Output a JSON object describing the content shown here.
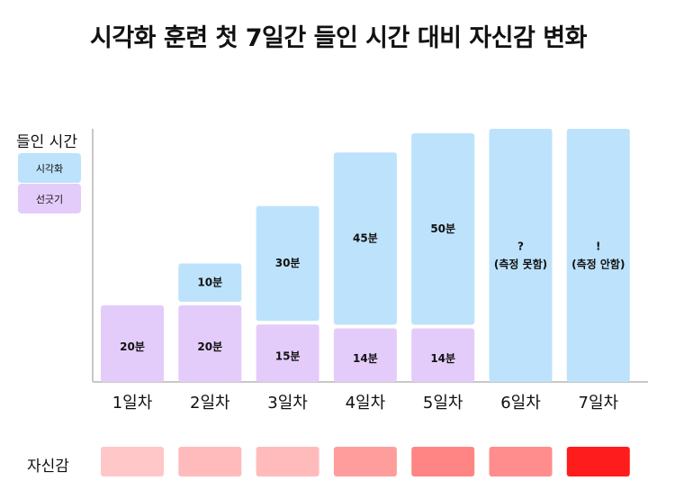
{
  "chart_data": {
    "type": "bar",
    "title": "시각화 훈련 첫 7일간 들인 시간 대비 자신감 변화",
    "legend_title": "들인 시간",
    "categories": [
      "1일차",
      "2일차",
      "3일차",
      "4일차",
      "5일차",
      "6일차",
      "7일차"
    ],
    "series": [
      {
        "name": "선긋기",
        "color": "#e4ccfa",
        "values": [
          20,
          20,
          15,
          14,
          14,
          null,
          null
        ],
        "labels": [
          "20분",
          "20분",
          "15분",
          "14분",
          "14분",
          "",
          ""
        ]
      },
      {
        "name": "시각화",
        "color": "#bde2fb",
        "values": [
          0,
          10,
          30,
          45,
          50,
          null,
          null
        ],
        "labels": [
          "",
          "10분",
          "30분",
          "45분",
          "50분",
          "",
          ""
        ]
      }
    ],
    "unmeasured": [
      {
        "category": "6일차",
        "mark": "?",
        "note": "(측정 못함)"
      },
      {
        "category": "7일차",
        "mark": "!",
        "note": "(측정 안함)"
      }
    ],
    "confidence": {
      "label": "자신감",
      "colors": [
        "#ffc7c7",
        "#ffbbbb",
        "#ffbbbb",
        "#ff9d9d",
        "#ff8585",
        "#ff8d8d",
        "#ff1c1c"
      ]
    },
    "legend_placement": "left",
    "grid": false
  }
}
